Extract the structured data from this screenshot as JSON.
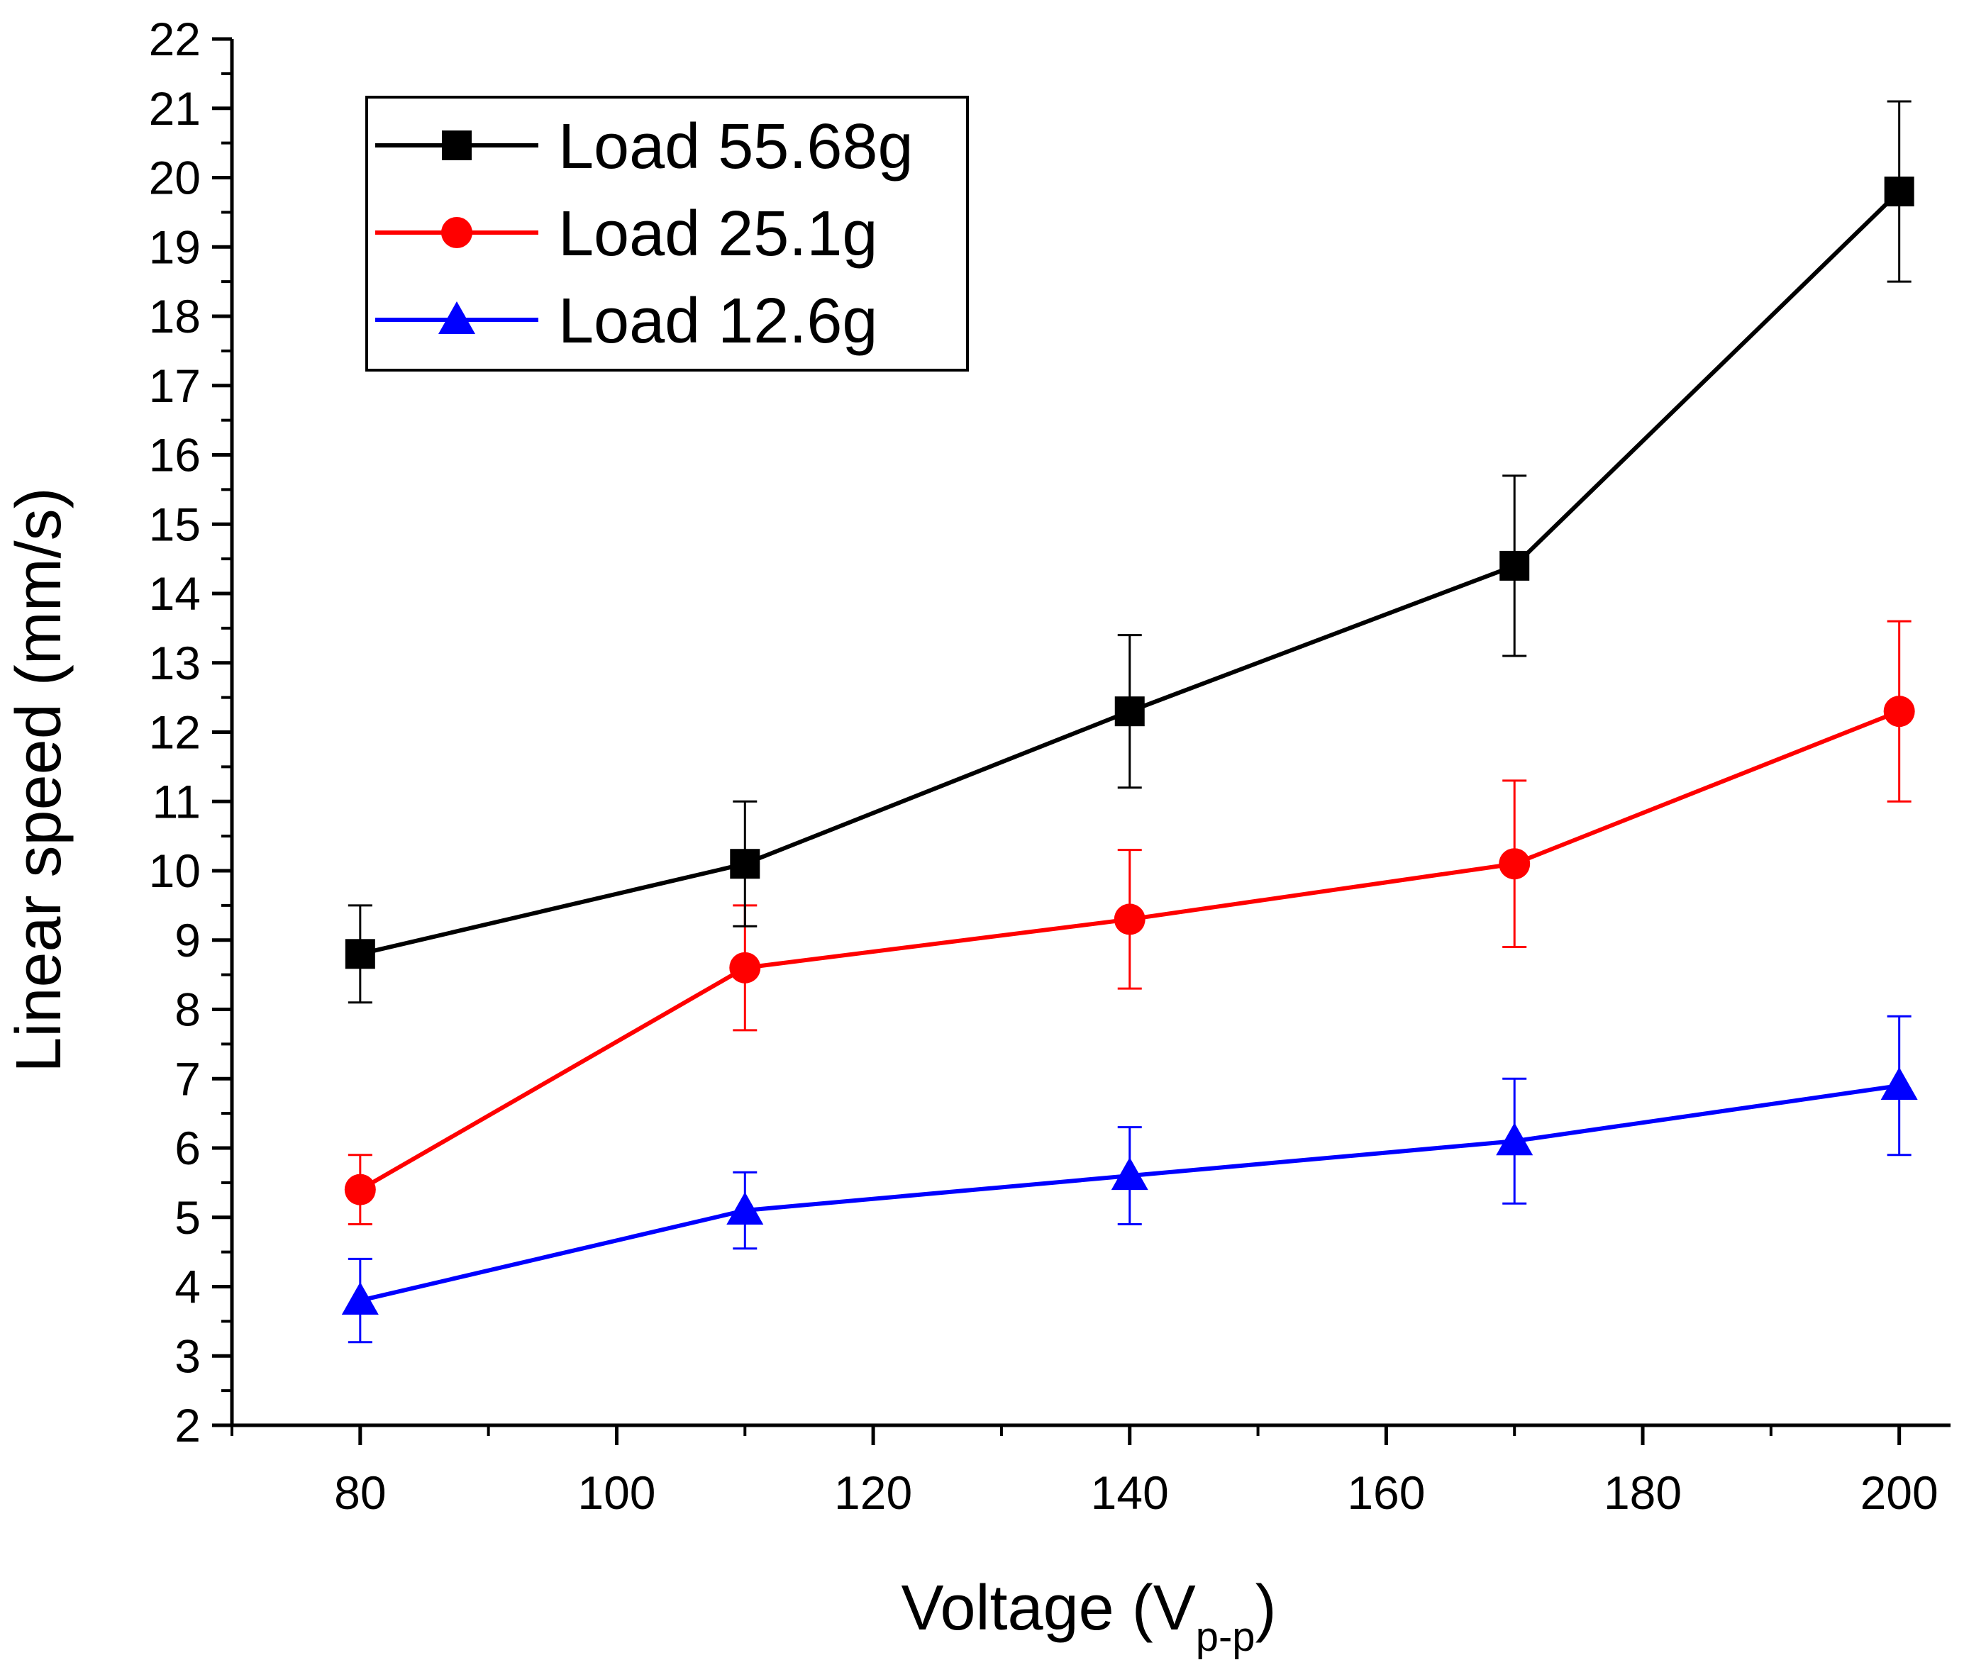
{
  "chart_data": {
    "type": "line",
    "title": "",
    "xlabel": "Voltage (V",
    "xlabel_subscript": "p-p",
    "xlabel_close": ")",
    "ylabel": "Linear speed (mm/s)",
    "xlim": [
      70,
      204
    ],
    "ylim": [
      2,
      22
    ],
    "xticks": [
      80,
      100,
      120,
      140,
      160,
      180,
      200
    ],
    "yticks": [
      2,
      3,
      4,
      5,
      6,
      7,
      8,
      9,
      10,
      11,
      12,
      13,
      14,
      15,
      16,
      17,
      18,
      19,
      20,
      21,
      22
    ],
    "grid": false,
    "legend_position": "top-left",
    "x": [
      80,
      110,
      140,
      170,
      200
    ],
    "series": [
      {
        "name": "Load 55.68g",
        "color": "#000000",
        "marker": "square",
        "values": [
          8.8,
          10.1,
          12.3,
          14.4,
          19.8
        ],
        "err_high": [
          9.5,
          11.0,
          13.4,
          15.7,
          21.1
        ],
        "err_low": [
          8.1,
          9.2,
          11.2,
          13.1,
          18.5
        ]
      },
      {
        "name": "Load 25.1g",
        "color": "#ff0000",
        "marker": "circle",
        "values": [
          5.4,
          8.6,
          9.3,
          10.1,
          12.3
        ],
        "err_high": [
          5.9,
          9.5,
          10.3,
          11.3,
          13.6
        ],
        "err_low": [
          4.9,
          7.7,
          8.3,
          8.9,
          11.0
        ]
      },
      {
        "name": "Load 12.6g",
        "color": "#0000ff",
        "marker": "triangle",
        "values": [
          3.8,
          5.1,
          5.6,
          6.1,
          6.9
        ],
        "err_high": [
          4.4,
          5.65,
          6.3,
          7.0,
          7.9
        ],
        "err_low": [
          3.2,
          4.55,
          4.9,
          5.2,
          5.9
        ]
      }
    ]
  }
}
